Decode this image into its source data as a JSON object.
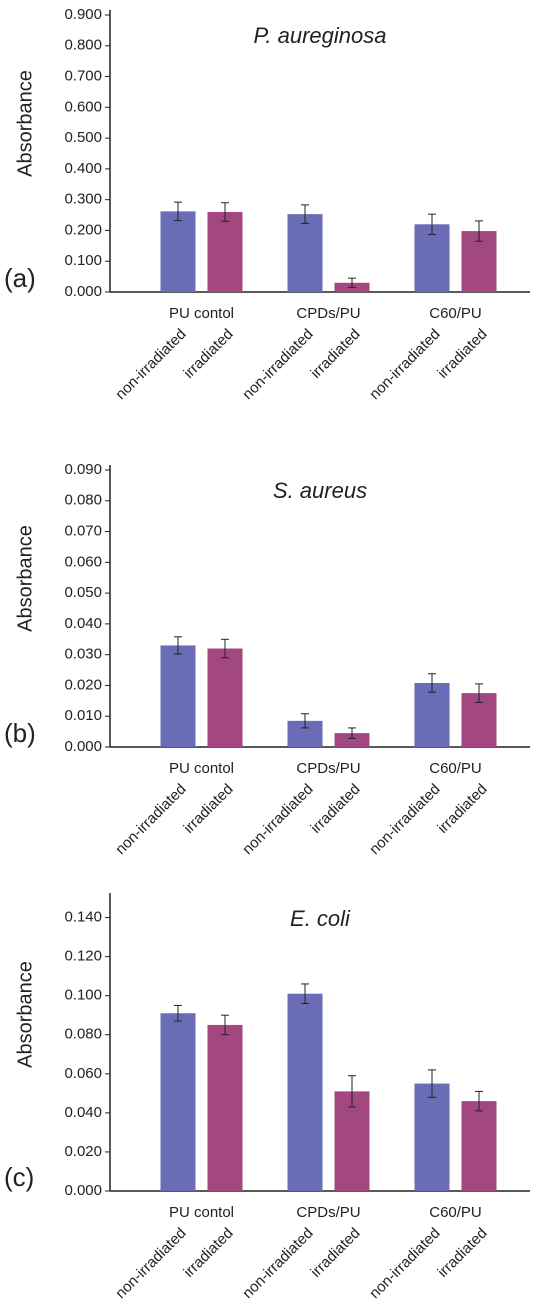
{
  "chart_data": [
    {
      "type": "bar",
      "panel": "(a)",
      "title": "P. aureginosa",
      "ylabel": "Absorbance",
      "categories": [
        "PU contol",
        "CPDs/PU",
        "C60/PU"
      ],
      "series": [
        {
          "name": "non-irradiated",
          "color": "#6a6db5",
          "values": [
            0.262,
            0.253,
            0.22
          ],
          "errors": [
            0.03,
            0.03,
            0.033
          ]
        },
        {
          "name": "irradiated",
          "color": "#a2477f",
          "values": [
            0.26,
            0.03,
            0.198
          ],
          "errors": [
            0.03,
            0.015,
            0.033
          ]
        }
      ],
      "ylim": [
        0,
        0.9
      ],
      "yticks": [
        {
          "value": 0,
          "label": "0.000"
        },
        {
          "value": 0.1,
          "label": "0.100"
        },
        {
          "value": 0.2,
          "label": "0.200"
        },
        {
          "value": 0.3,
          "label": "0.300"
        },
        {
          "value": 0.4,
          "label": "0.400"
        },
        {
          "value": 0.5,
          "label": "0.500"
        },
        {
          "value": 0.6,
          "label": "0.600"
        },
        {
          "value": 0.7,
          "label": "0.700"
        },
        {
          "value": 0.8,
          "label": "0.800"
        },
        {
          "value": 0.9,
          "label": "0.900"
        }
      ]
    },
    {
      "type": "bar",
      "panel": "(b)",
      "title": "S. aureus",
      "ylabel": "Absorbance",
      "categories": [
        "PU contol",
        "CPDs/PU",
        "C60/PU"
      ],
      "series": [
        {
          "name": "non-irradiated",
          "color": "#6a6db5",
          "values": [
            0.033,
            0.0085,
            0.0208
          ],
          "errors": [
            0.0028,
            0.0023,
            0.003
          ]
        },
        {
          "name": "irradiated",
          "color": "#a2477f",
          "values": [
            0.032,
            0.0045,
            0.0175
          ],
          "errors": [
            0.003,
            0.0017,
            0.003
          ]
        }
      ],
      "ylim": [
        0,
        0.09
      ],
      "yticks": [
        {
          "value": 0,
          "label": "0.000"
        },
        {
          "value": 0.01,
          "label": "0.010"
        },
        {
          "value": 0.02,
          "label": "0.020"
        },
        {
          "value": 0.03,
          "label": "0.030"
        },
        {
          "value": 0.04,
          "label": "0.040"
        },
        {
          "value": 0.05,
          "label": "0.050"
        },
        {
          "value": 0.06,
          "label": "0.060"
        },
        {
          "value": 0.07,
          "label": "0.070"
        },
        {
          "value": 0.08,
          "label": "0.080"
        },
        {
          "value": 0.09,
          "label": "0.090"
        }
      ]
    },
    {
      "type": "bar",
      "panel": "(c)",
      "title": "E. coli",
      "ylabel": "Absorbance",
      "categories": [
        "PU contol",
        "CPDs/PU",
        "C60/PU"
      ],
      "series": [
        {
          "name": "non-irradiated",
          "color": "#6a6db5",
          "values": [
            0.091,
            0.101,
            0.055
          ],
          "errors": [
            0.004,
            0.005,
            0.007
          ]
        },
        {
          "name": "irradiated",
          "color": "#a2477f",
          "values": [
            0.085,
            0.051,
            0.046
          ],
          "errors": [
            0.005,
            0.008,
            0.005
          ]
        }
      ],
      "ylim": [
        0,
        0.15
      ],
      "yticks": [
        {
          "value": 0,
          "label": "0.000"
        },
        {
          "value": 0.02,
          "label": "0.020"
        },
        {
          "value": 0.04,
          "label": "0.040"
        },
        {
          "value": 0.06,
          "label": "0.060"
        },
        {
          "value": 0.08,
          "label": "0.080"
        },
        {
          "value": 0.1,
          "label": "0.100"
        },
        {
          "value": 0.12,
          "label": "0.120"
        },
        {
          "value": 0.14,
          "label": "0.140"
        }
      ]
    }
  ]
}
